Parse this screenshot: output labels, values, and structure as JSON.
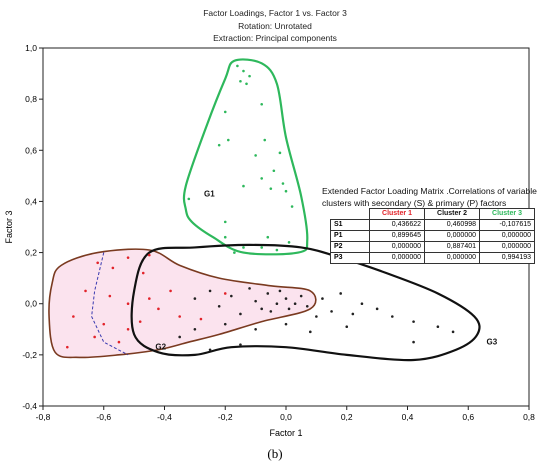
{
  "chart_data": {
    "type": "scatter",
    "title": "Factor Loadings, Factor 1 vs. Factor 3",
    "subtitle": [
      "Rotation: Unrotated",
      "Extraction: Principal components"
    ],
    "xlabel": "Factor 1",
    "ylabel": "Factor 3",
    "xlim": [
      -0.8,
      0.8
    ],
    "ylim": [
      -0.4,
      1.0
    ],
    "xticks": [
      -0.8,
      -0.6,
      -0.4,
      -0.2,
      0.0,
      0.2,
      0.4,
      0.6,
      0.8
    ],
    "yticks": [
      -0.4,
      -0.2,
      0.0,
      0.2,
      0.4,
      0.6,
      0.8,
      1.0
    ],
    "xtick_labels": [
      "-0,8",
      "-0,6",
      "-0,4",
      "-0,2",
      "0,0",
      "0,2",
      "0,4",
      "0,6",
      "0,8"
    ],
    "ytick_labels": [
      "-0,4",
      "-0,2",
      "0,0",
      "0,2",
      "0,4",
      "0,6",
      "0,8",
      "1,0"
    ],
    "grid": false,
    "clusters": [
      {
        "name": "G1",
        "color": "#2eb85c",
        "label_at": [
          -0.27,
          0.42
        ],
        "outline": [
          [
            -0.17,
            0.95
          ],
          [
            -0.08,
            0.94
          ],
          [
            -0.03,
            0.86
          ],
          [
            0.0,
            0.65
          ],
          [
            0.05,
            0.42
          ],
          [
            0.07,
            0.25
          ],
          [
            0.04,
            0.2
          ],
          [
            -0.14,
            0.2
          ],
          [
            -0.24,
            0.26
          ],
          [
            -0.31,
            0.32
          ],
          [
            -0.33,
            0.37
          ],
          [
            -0.33,
            0.46
          ],
          [
            -0.26,
            0.7
          ],
          [
            -0.2,
            0.88
          ]
        ],
        "points": [
          [
            -0.16,
            0.93
          ],
          [
            -0.14,
            0.91
          ],
          [
            -0.12,
            0.89
          ],
          [
            -0.15,
            0.87
          ],
          [
            -0.13,
            0.86
          ],
          [
            -0.2,
            0.75
          ],
          [
            -0.08,
            0.78
          ],
          [
            -0.19,
            0.64
          ],
          [
            -0.07,
            0.64
          ],
          [
            -0.22,
            0.62
          ],
          [
            -0.1,
            0.58
          ],
          [
            -0.02,
            0.59
          ],
          [
            -0.04,
            0.52
          ],
          [
            -0.08,
            0.49
          ],
          [
            -0.01,
            0.47
          ],
          [
            -0.14,
            0.46
          ],
          [
            -0.05,
            0.45
          ],
          [
            0.0,
            0.44
          ],
          [
            -0.32,
            0.41
          ],
          [
            0.02,
            0.38
          ],
          [
            -0.2,
            0.32
          ],
          [
            -0.2,
            0.26
          ],
          [
            -0.06,
            0.26
          ],
          [
            0.01,
            0.24
          ],
          [
            -0.14,
            0.22
          ],
          [
            -0.08,
            0.22
          ],
          [
            -0.03,
            0.21
          ],
          [
            -0.17,
            0.2
          ]
        ]
      },
      {
        "name": "G2",
        "color": "#7a3a20",
        "label_at": [
          -0.43,
          -0.18
        ],
        "outline": [
          [
            -0.74,
            0.15
          ],
          [
            -0.62,
            0.2
          ],
          [
            -0.45,
            0.21
          ],
          [
            -0.35,
            0.15
          ],
          [
            -0.22,
            0.1
          ],
          [
            -0.05,
            0.07
          ],
          [
            0.08,
            0.05
          ],
          [
            0.08,
            -0.02
          ],
          [
            -0.08,
            -0.07
          ],
          [
            -0.22,
            -0.12
          ],
          [
            -0.32,
            -0.15
          ],
          [
            -0.42,
            -0.18
          ],
          [
            -0.55,
            -0.2
          ],
          [
            -0.68,
            -0.21
          ],
          [
            -0.76,
            -0.19
          ],
          [
            -0.78,
            -0.05
          ],
          [
            -0.77,
            0.08
          ]
        ],
        "points": [
          [
            -0.62,
            0.16
          ],
          [
            -0.52,
            0.18
          ],
          [
            -0.45,
            0.19
          ],
          [
            -0.57,
            0.14
          ],
          [
            -0.47,
            0.12
          ],
          [
            -0.66,
            0.05
          ],
          [
            -0.58,
            0.03
          ],
          [
            -0.52,
            0.0
          ],
          [
            -0.45,
            0.02
          ],
          [
            -0.38,
            0.05
          ],
          [
            -0.42,
            -0.02
          ],
          [
            -0.35,
            -0.05
          ],
          [
            -0.7,
            -0.05
          ],
          [
            -0.6,
            -0.08
          ],
          [
            -0.52,
            -0.1
          ],
          [
            -0.63,
            -0.13
          ],
          [
            -0.55,
            -0.15
          ],
          [
            -0.72,
            -0.17
          ],
          [
            -0.48,
            -0.07
          ],
          [
            -0.28,
            -0.06
          ],
          [
            -0.2,
            0.04
          ]
        ]
      },
      {
        "name": "G3",
        "color": "#111111",
        "label_at": [
          0.66,
          -0.16
        ],
        "outline": [
          [
            -0.45,
            0.2
          ],
          [
            -0.3,
            0.22
          ],
          [
            -0.12,
            0.23
          ],
          [
            0.05,
            0.22
          ],
          [
            0.18,
            0.18
          ],
          [
            0.33,
            0.12
          ],
          [
            0.5,
            0.04
          ],
          [
            0.62,
            -0.05
          ],
          [
            0.63,
            -0.12
          ],
          [
            0.56,
            -0.18
          ],
          [
            0.42,
            -0.22
          ],
          [
            0.2,
            -0.2
          ],
          [
            0.0,
            -0.17
          ],
          [
            -0.18,
            -0.17
          ],
          [
            -0.3,
            -0.2
          ],
          [
            -0.42,
            -0.19
          ],
          [
            -0.5,
            -0.12
          ],
          [
            -0.5,
            0.05
          ]
        ],
        "points": [
          [
            -0.3,
            0.02
          ],
          [
            -0.25,
            0.05
          ],
          [
            -0.22,
            -0.01
          ],
          [
            -0.18,
            0.03
          ],
          [
            -0.15,
            -0.04
          ],
          [
            -0.12,
            0.06
          ],
          [
            -0.1,
            0.01
          ],
          [
            -0.08,
            -0.02
          ],
          [
            -0.06,
            0.04
          ],
          [
            -0.05,
            -0.03
          ],
          [
            -0.03,
            0.0
          ],
          [
            -0.02,
            0.05
          ],
          [
            0.0,
            0.02
          ],
          [
            0.01,
            -0.02
          ],
          [
            0.03,
            0.0
          ],
          [
            0.05,
            0.03
          ],
          [
            0.07,
            -0.01
          ],
          [
            0.1,
            -0.05
          ],
          [
            0.12,
            0.02
          ],
          [
            0.15,
            -0.03
          ],
          [
            0.18,
            0.04
          ],
          [
            0.22,
            -0.04
          ],
          [
            0.25,
            0.0
          ],
          [
            0.3,
            -0.02
          ],
          [
            0.35,
            -0.05
          ],
          [
            0.42,
            -0.07
          ],
          [
            0.5,
            -0.09
          ],
          [
            0.55,
            -0.11
          ],
          [
            0.42,
            -0.15
          ],
          [
            0.2,
            -0.09
          ],
          [
            -0.1,
            -0.1
          ],
          [
            -0.2,
            -0.08
          ],
          [
            -0.3,
            -0.1
          ],
          [
            -0.35,
            -0.13
          ],
          [
            -0.15,
            -0.16
          ],
          [
            -0.25,
            -0.18
          ],
          [
            0.0,
            -0.08
          ],
          [
            0.08,
            -0.11
          ]
        ]
      }
    ],
    "inset_table": {
      "title": "Extended Factor Loading Matrix .Correlations of variable clusters with secondary (S) & primary (P) factors",
      "columns": [
        "Cluster 1",
        "Cluster 2",
        "Cluster 3"
      ],
      "column_colors": [
        "#e2232a",
        "#111111",
        "#2eb85c"
      ],
      "rows": [
        {
          "label": "S1",
          "values": [
            "0,436622",
            "0,460998",
            "-0,107615"
          ]
        },
        {
          "label": "P1",
          "values": [
            "0,899645",
            "0,000000",
            "0,000000"
          ]
        },
        {
          "label": "P2",
          "values": [
            "0,000000",
            "0,887401",
            "0,000000"
          ]
        },
        {
          "label": "P3",
          "values": [
            "0,000000",
            "0,000000",
            "0,994193"
          ]
        }
      ]
    }
  },
  "caption": "(b)",
  "colors": {
    "axis": "#222222",
    "g2_dash": "#3a3ab0",
    "red_points": "#e2232a"
  }
}
